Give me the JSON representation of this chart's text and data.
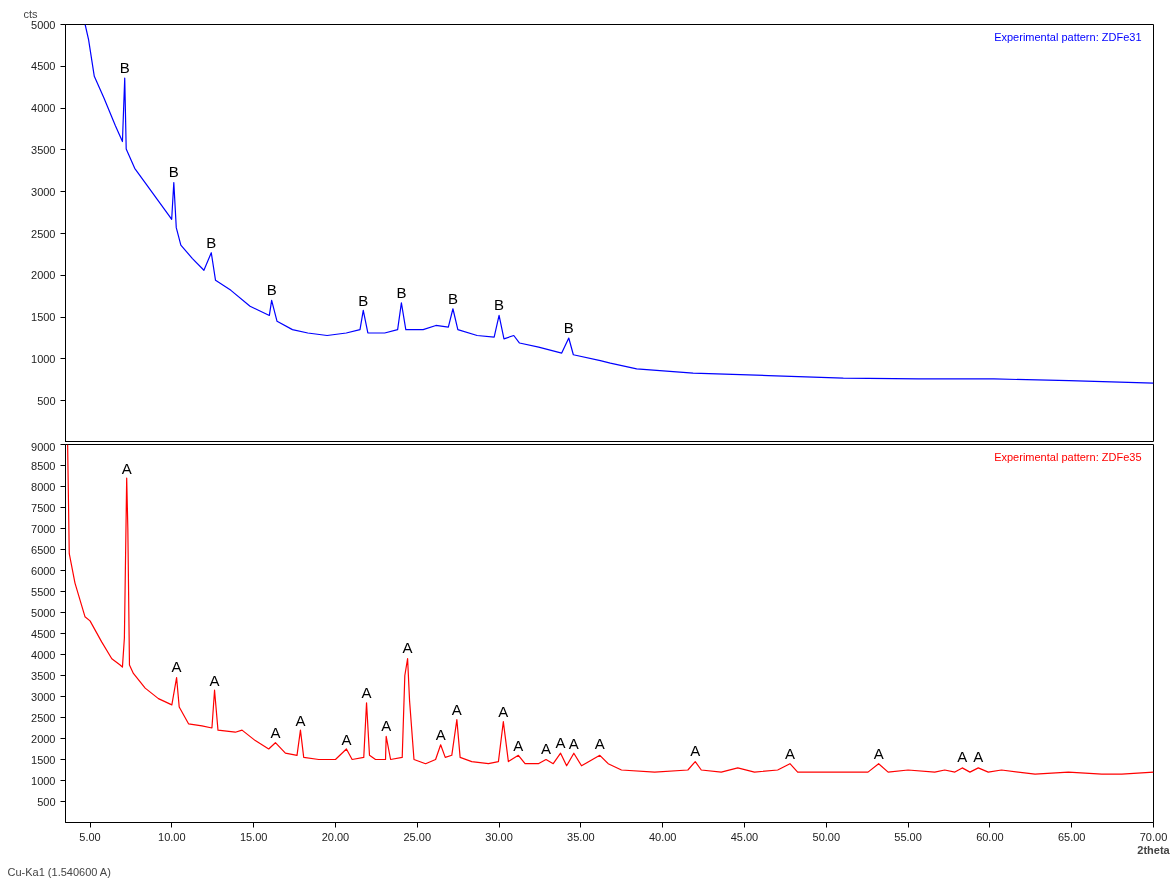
{
  "chart_data": [
    {
      "type": "line",
      "ylabel": "cts",
      "xlim": [
        3.5,
        70
      ],
      "ylim": [
        0,
        5000
      ],
      "yticks": [
        500,
        1000,
        1500,
        2000,
        2500,
        3000,
        3500,
        4000,
        4500,
        5000
      ],
      "tick_labels": "y",
      "legend": "top right",
      "series": [
        {
          "name": "Experimental pattern: ZDFe31",
          "color": "#0000ff",
          "x": [
            4.7,
            4.91,
            5.26,
            5.85,
            6.55,
            6.98,
            7.12,
            7.21,
            7.73,
            8.43,
            9.14,
            9.84,
            9.99,
            10.12,
            10.27,
            10.55,
            11.26,
            11.96,
            12.41,
            12.67,
            13.61,
            14.78,
            15.96,
            16.1,
            16.43,
            17.37,
            18.31,
            19.49,
            20.66,
            21.5,
            21.7,
            21.98,
            23.01,
            23.8,
            24.03,
            24.3,
            25.36,
            26.14,
            26.9,
            27.18,
            27.48,
            28.66,
            29.7,
            30.0,
            30.3,
            30.9,
            31.25,
            32.42,
            33.83,
            34.26,
            34.54,
            36.19,
            36.8,
            38.41,
            41.86,
            46.46,
            51.04,
            55.63,
            60.25,
            64.84,
            70.0
          ],
          "values": [
            5000,
            4820,
            4380,
            4120,
            3790,
            3600,
            4360,
            3510,
            3280,
            3090,
            2900,
            2710,
            2670,
            3110,
            2570,
            2360,
            2200,
            2060,
            2270,
            1940,
            1820,
            1630,
            1520,
            1700,
            1450,
            1350,
            1310,
            1280,
            1310,
            1350,
            1580,
            1310,
            1310,
            1350,
            1670,
            1350,
            1350,
            1400,
            1380,
            1600,
            1350,
            1280,
            1260,
            1520,
            1240,
            1280,
            1190,
            1140,
            1070,
            1250,
            1050,
            980,
            950,
            880,
            830,
            800,
            770,
            760,
            760,
            740,
            710
          ]
        }
      ],
      "annotations": [
        {
          "text": "B",
          "x": 7.12,
          "y": 4362
        },
        {
          "text": "B",
          "x": 10.12,
          "y": 3111
        },
        {
          "text": "B",
          "x": 12.41,
          "y": 2267
        },
        {
          "text": "B",
          "x": 16.1,
          "y": 1704
        },
        {
          "text": "B",
          "x": 21.7,
          "y": 1578
        },
        {
          "text": "B",
          "x": 24.03,
          "y": 1672
        },
        {
          "text": "B",
          "x": 27.18,
          "y": 1597
        },
        {
          "text": "B",
          "x": 30.0,
          "y": 1522
        },
        {
          "text": "B",
          "x": 34.26,
          "y": 1250
        }
      ]
    },
    {
      "type": "line",
      "xlabel": "2theta",
      "xlim": [
        3.5,
        70
      ],
      "ylim": [
        0,
        9000
      ],
      "yticks": [
        500,
        1000,
        1500,
        2000,
        2500,
        3000,
        3500,
        4000,
        4500,
        5000,
        5500,
        6000,
        6500,
        7000,
        7500,
        8000,
        8500,
        9000
      ],
      "legend": "top right",
      "xticks": [
        {
          "value": 5,
          "label": "5.00"
        },
        {
          "value": 10,
          "label": "10.00"
        },
        {
          "value": 15,
          "label": "15.00"
        },
        {
          "value": 20,
          "label": "20.00"
        },
        {
          "value": 25,
          "label": "25.00"
        },
        {
          "value": 30,
          "label": "30.00"
        },
        {
          "value": 35,
          "label": "35.00"
        },
        {
          "value": 40,
          "label": "40.00"
        },
        {
          "value": 45,
          "label": "45.00"
        },
        {
          "value": 50,
          "label": "50.00"
        },
        {
          "value": 55,
          "label": "55.00"
        },
        {
          "value": 60,
          "label": "60.00"
        },
        {
          "value": 65,
          "label": "65.00"
        },
        {
          "value": 70,
          "label": "70.00"
        }
      ],
      "series": [
        {
          "name": "Experimental pattern: ZDFe35",
          "color": "#ff0000",
          "x": [
            3.63,
            3.73,
            4.08,
            4.69,
            5.0,
            5.71,
            6.33,
            6.84,
            6.98,
            7.1,
            7.24,
            7.31,
            7.41,
            7.65,
            8.37,
            9.18,
            10.0,
            10.29,
            10.45,
            11.02,
            11.84,
            12.45,
            12.61,
            12.82,
            13.88,
            14.29,
            15.1,
            15.92,
            16.33,
            16.94,
            17.65,
            17.86,
            18.06,
            18.98,
            20.0,
            20.67,
            21.02,
            21.73,
            21.9,
            22.08,
            22.45,
            23.06,
            23.1,
            23.37,
            24.08,
            24.24,
            24.41,
            24.53,
            24.8,
            25.51,
            26.12,
            26.43,
            26.71,
            27.11,
            27.42,
            27.62,
            28.33,
            29.35,
            29.96,
            30.26,
            30.57,
            31.18,
            31.59,
            32.4,
            32.87,
            33.31,
            33.76,
            34.13,
            34.57,
            35.04,
            36.16,
            36.67,
            37.48,
            39.51,
            41.54,
            41.99,
            42.36,
            43.58,
            44.59,
            45.61,
            47.03,
            47.78,
            48.25,
            49.47,
            50.0,
            51.53,
            52.55,
            53.2,
            53.78,
            55.0,
            56.63,
            57.24,
            57.86,
            58.31,
            58.78,
            59.29,
            59.9,
            60.71,
            62.76,
            64.8,
            66.84,
            68.06,
            70.0
          ],
          "values": [
            9000,
            6400,
            5700,
            4900,
            4800,
            4300,
            3900,
            3750,
            3700,
            4400,
            8200,
            7000,
            3750,
            3550,
            3200,
            2950,
            2800,
            3450,
            2750,
            2350,
            2300,
            2250,
            3150,
            2200,
            2150,
            2200,
            1950,
            1750,
            1900,
            1650,
            1600,
            2200,
            1550,
            1500,
            1500,
            1750,
            1500,
            1550,
            2850,
            1600,
            1500,
            1500,
            2050,
            1500,
            1550,
            3500,
            3900,
            2900,
            1500,
            1400,
            1500,
            1850,
            1550,
            1600,
            2450,
            1550,
            1450,
            1400,
            1450,
            2400,
            1450,
            1600,
            1400,
            1400,
            1500,
            1400,
            1650,
            1350,
            1650,
            1350,
            1600,
            1400,
            1250,
            1200,
            1250,
            1450,
            1250,
            1200,
            1300,
            1200,
            1250,
            1400,
            1200,
            1200,
            1200,
            1200,
            1200,
            1400,
            1200,
            1250,
            1200,
            1250,
            1200,
            1300,
            1200,
            1300,
            1200,
            1250,
            1150,
            1200,
            1150,
            1150,
            1200
          ]
        }
      ],
      "annotations": [
        {
          "text": "A",
          "x": 7.24,
          "y": 8186
        },
        {
          "text": "A",
          "x": 10.29,
          "y": 3466
        },
        {
          "text": "A",
          "x": 12.61,
          "y": 3134
        },
        {
          "text": "A",
          "x": 16.33,
          "y": 1881
        },
        {
          "text": "A",
          "x": 17.86,
          "y": 2176
        },
        {
          "text": "A",
          "x": 20.67,
          "y": 1733
        },
        {
          "text": "A",
          "x": 21.9,
          "y": 2839
        },
        {
          "text": "A",
          "x": 23.1,
          "y": 2065
        },
        {
          "text": "A",
          "x": 24.41,
          "y": 3909
        },
        {
          "text": "A",
          "x": 26.43,
          "y": 1844
        },
        {
          "text": "A",
          "x": 27.42,
          "y": 2432
        },
        {
          "text": "A",
          "x": 30.26,
          "y": 2395
        },
        {
          "text": "A",
          "x": 31.18,
          "y": 1584
        },
        {
          "text": "A",
          "x": 32.87,
          "y": 1511
        },
        {
          "text": "A",
          "x": 33.76,
          "y": 1658
        },
        {
          "text": "A",
          "x": 34.57,
          "y": 1636
        },
        {
          "text": "A",
          "x": 36.16,
          "y": 1621
        },
        {
          "text": "A",
          "x": 41.99,
          "y": 1474
        },
        {
          "text": "A",
          "x": 47.78,
          "y": 1400
        },
        {
          "text": "A",
          "x": 53.2,
          "y": 1400
        },
        {
          "text": "A",
          "x": 58.31,
          "y": 1312
        },
        {
          "text": "A",
          "x": 59.29,
          "y": 1312
        },
        "Cu-Ka1 (1.540600 A)"
      ]
    }
  ]
}
